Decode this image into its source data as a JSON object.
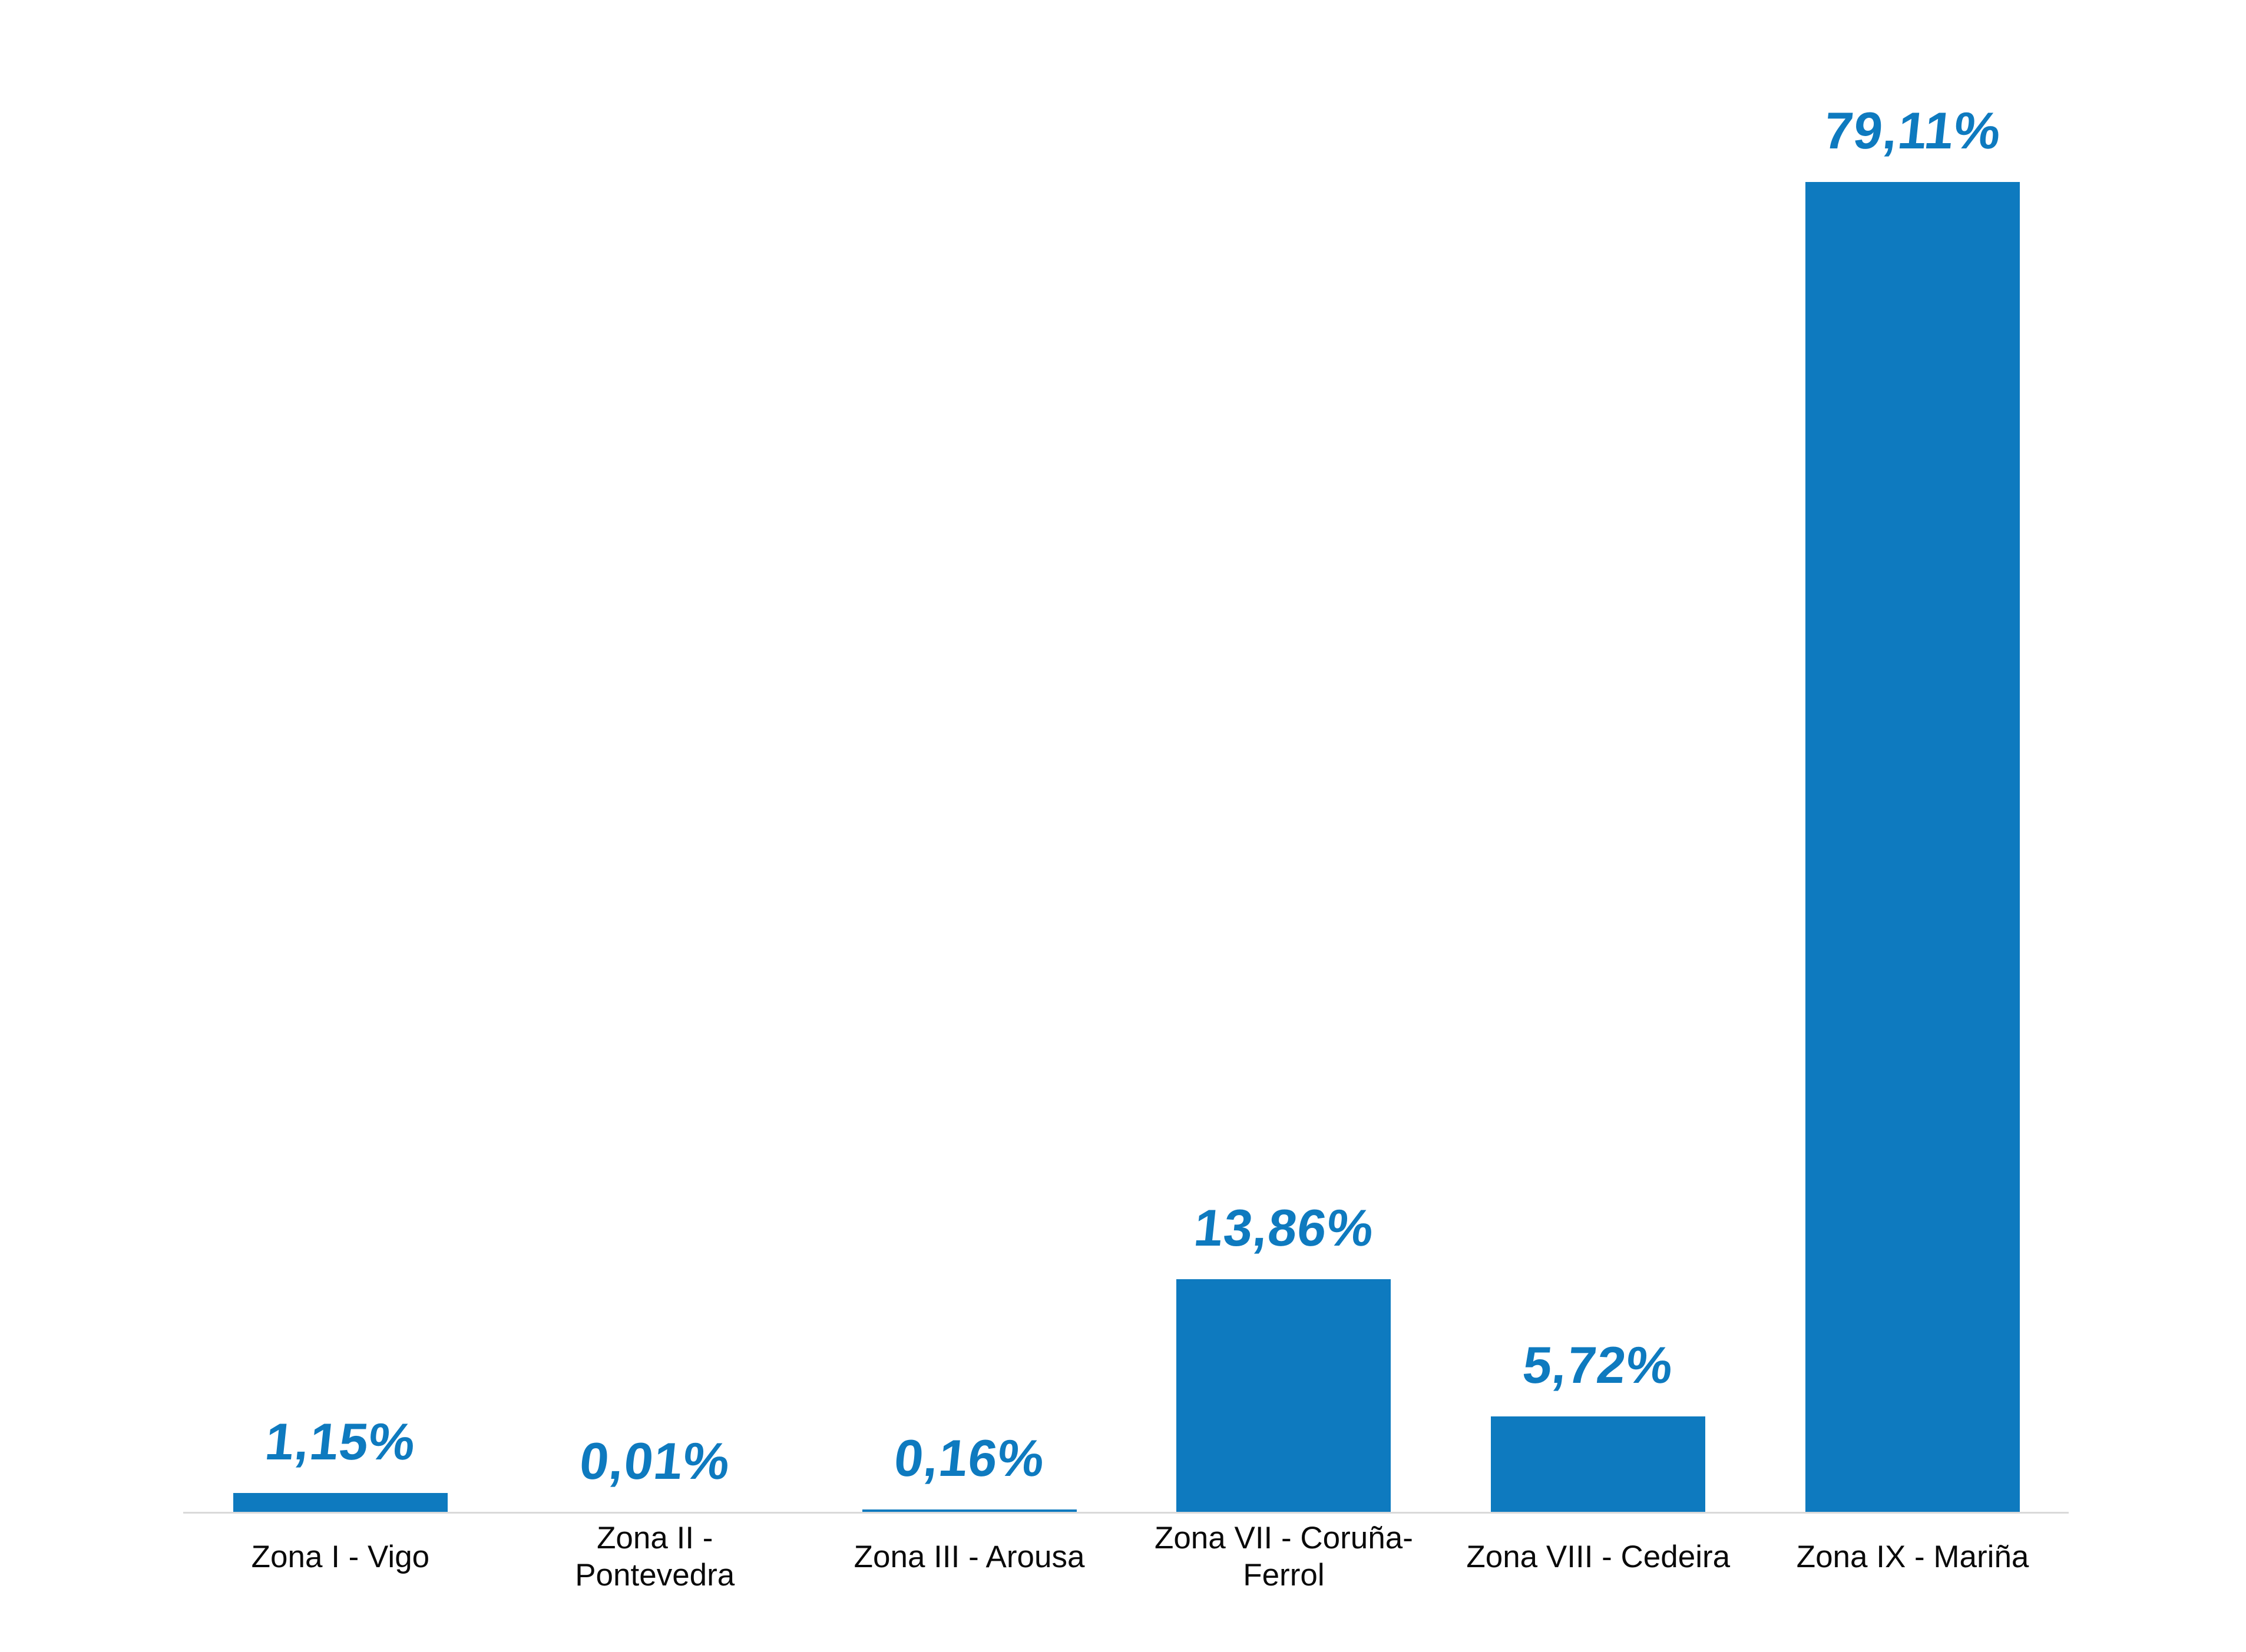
{
  "chart_data": {
    "type": "bar",
    "title": "",
    "xlabel": "",
    "ylabel": "",
    "grid": false,
    "legend": null,
    "ylim": [
      0,
      90
    ],
    "categories": [
      "Zona I - Vigo",
      "Zona II - Pontevedra",
      "Zona III - Arousa",
      "Zona VII - Coruña-Ferrol",
      "Zona VIII - Cedeira",
      "Zona IX - Mariña"
    ],
    "category_label_lines": [
      [
        "Zona I - Vigo"
      ],
      [
        "Zona II -",
        "Pontevedra"
      ],
      [
        "Zona III - Arousa"
      ],
      [
        "Zona VII - Coruña-",
        "Ferrol"
      ],
      [
        "Zona VIII - Cedeira"
      ],
      [
        "Zona IX - Mariña"
      ]
    ],
    "values": [
      1.15,
      0.01,
      0.16,
      13.86,
      5.72,
      79.11
    ],
    "value_labels": [
      "1,15%",
      "0,01%",
      "0,16%",
      "13,86%",
      "5,72%",
      "79,11%"
    ],
    "colors": {
      "bar": "#0e7abf",
      "value_label": "#0e7abf",
      "category_label": "#0a0a0a",
      "axis_line": "#d9d9d9",
      "background": "#ffffff"
    }
  }
}
